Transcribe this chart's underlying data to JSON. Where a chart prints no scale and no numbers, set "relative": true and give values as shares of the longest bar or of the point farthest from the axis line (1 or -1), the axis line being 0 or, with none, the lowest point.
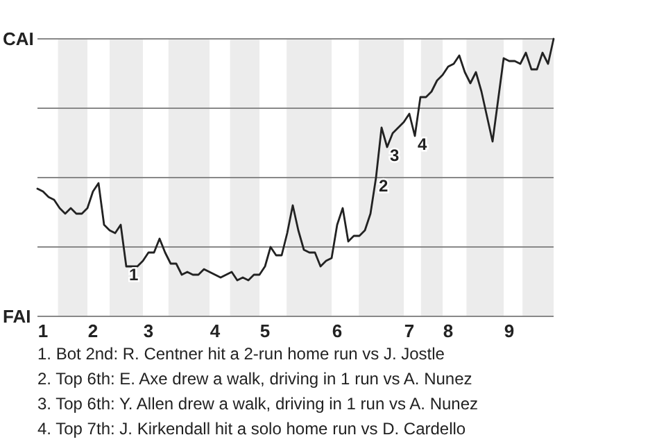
{
  "chart_data": {
    "type": "line",
    "relative": true,
    "categories": [
      null,
      "1",
      null,
      null,
      null,
      null,
      null,
      null,
      null,
      null,
      "2",
      null,
      null,
      null,
      null,
      null,
      null,
      null,
      null,
      null,
      "3",
      null,
      null,
      null,
      null,
      null,
      null,
      null,
      null,
      null,
      null,
      null,
      "4",
      null,
      null,
      null,
      null,
      null,
      null,
      null,
      null,
      "5",
      null,
      null,
      null,
      null,
      null,
      null,
      null,
      null,
      null,
      null,
      null,
      null,
      "6",
      null,
      null,
      null,
      null,
      null,
      null,
      null,
      null,
      null,
      null,
      null,
      null,
      "7",
      null,
      null,
      null,
      null,
      null,
      null,
      "8",
      null,
      null,
      null,
      null,
      null,
      null,
      null,
      null,
      null,
      null,
      "9",
      null,
      null,
      null,
      null,
      null,
      null,
      null,
      null
    ],
    "grid": "y",
    "series": [
      {
        "color": "#222222",
        "values": [
          0.46,
          0.45,
          0.43,
          0.42,
          0.39,
          0.37,
          0.39,
          0.37,
          0.37,
          0.39,
          0.45,
          0.48,
          0.33,
          0.31,
          0.3,
          0.33,
          0.18,
          0.18,
          0.18,
          0.2,
          0.23,
          0.23,
          0.28,
          0.23,
          0.19,
          0.19,
          0.15,
          0.16,
          0.15,
          0.15,
          0.17,
          0.16,
          0.15,
          0.14,
          0.15,
          0.16,
          0.13,
          0.14,
          0.13,
          0.15,
          0.15,
          0.18,
          0.25,
          0.22,
          0.22,
          0.3,
          0.4,
          0.31,
          0.24,
          0.23,
          0.23,
          0.18,
          0.2,
          0.21,
          0.33,
          0.39,
          0.27,
          0.29,
          0.29,
          0.31,
          0.37,
          0.5,
          0.68,
          0.61,
          0.66,
          0.68,
          0.7,
          0.73,
          0.65,
          0.79,
          0.79,
          0.81,
          0.85,
          0.87,
          0.9,
          0.91,
          0.94,
          0.88,
          0.84,
          0.88,
          0.81,
          0.72,
          0.63,
          0.78,
          0.93,
          0.92,
          0.92,
          0.91,
          0.95,
          0.89,
          0.89,
          0.95,
          0.91,
          1.0
        ]
      }
    ],
    "annotations": [
      "CAI",
      "FAI",
      {
        "text": "1",
        "y": 0.18
      },
      {
        "text": "2",
        "y": 0.5
      },
      {
        "text": "3",
        "y": 0.61
      },
      {
        "text": "4",
        "y": 0.65
      },
      "1. Bot 2nd: R. Centner hit a 2-run home run vs J. Jostle",
      "2. Top 6th: E. Axe drew a walk, driving in 1 run vs A. Nunez",
      "3. Top 6th: Y. Allen drew a walk, driving in 1 run vs A. Nunez",
      "4. Top 7th: J. Kirkendall hit a solo home run vs D. Cardello"
    ]
  }
}
